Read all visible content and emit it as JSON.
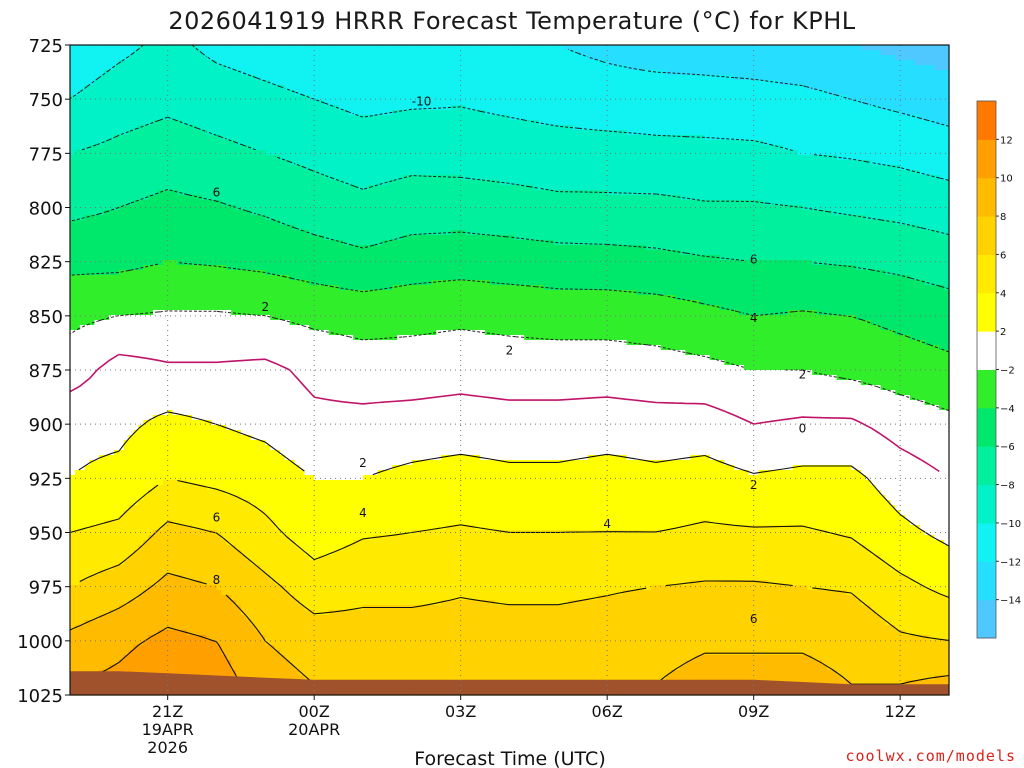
{
  "title": "2026041919 HRRR Forecast Temperature (°C) for KPHL",
  "credit": "coolwx.com/models",
  "colors": {
    "surface": "#a0522d",
    "zero_line": "#c0136a",
    "grid": "#777777"
  },
  "chart_data": {
    "type": "heatmap",
    "title": "2026041919 HRRR Forecast Temperature (°C) for KPHL",
    "xlabel": "Forecast Time (UTC)",
    "ylabel": "",
    "x_unit": "hours since 2026041919",
    "xlim": [
      0,
      18
    ],
    "ylim": [
      1025,
      725
    ],
    "y_axis": "pressure (hPa), decreasing upward",
    "grid": true,
    "x_ticks": [
      {
        "x": 2,
        "lines": [
          "21Z",
          "19APR",
          "2026"
        ]
      },
      {
        "x": 5,
        "lines": [
          "00Z",
          "20APR"
        ]
      },
      {
        "x": 8,
        "lines": [
          "03Z"
        ]
      },
      {
        "x": 11,
        "lines": [
          "06Z"
        ]
      },
      {
        "x": 14,
        "lines": [
          "09Z"
        ]
      },
      {
        "x": 17,
        "lines": [
          "12Z"
        ]
      }
    ],
    "y_ticks": [
      725,
      750,
      775,
      800,
      825,
      850,
      875,
      900,
      925,
      950,
      975,
      1000,
      1025
    ],
    "colorbar": {
      "levels": [
        -16,
        -14,
        -12,
        -10,
        -8,
        -6,
        -4,
        -2,
        2,
        4,
        6,
        8,
        10,
        12,
        14
      ],
      "colors": [
        "#4fc8ff",
        "#26deff",
        "#11f2f2",
        "#00f2c6",
        "#00f09e",
        "#00e86c",
        "#31ee2a",
        "#ffffff",
        "#ffff00",
        "#ffea00",
        "#ffd200",
        "#ffbb00",
        "#ff9f00",
        "#ff7800"
      ],
      "tick_labels": [
        -14,
        -12,
        -10,
        -8,
        -6,
        -4,
        -2,
        2,
        4,
        6,
        8,
        10,
        12
      ]
    },
    "columns_x": [
      0,
      1,
      2,
      3,
      4,
      5,
      6,
      7,
      8,
      9,
      10,
      11,
      12,
      13,
      14,
      15,
      16,
      17,
      18
    ],
    "temperature_profiles": {
      "pressure_levels": [
        1020,
        1000,
        975,
        950,
        925,
        900,
        875,
        850,
        825,
        800,
        775,
        750,
        725
      ],
      "values": [
        [
          10.0,
          8.5,
          6.0,
          4.0,
          2.0,
          1.5,
          -1.0,
          -2.5,
          -4.5,
          -6.5,
          -8.0,
          -10.0,
          -11.5
        ],
        [
          10.5,
          9.5,
          7.0,
          4.5,
          2.5,
          1.5,
          0.8,
          -2.0,
          -4.5,
          -6.0,
          -7.5,
          -9.0,
          -10.5
        ],
        [
          11.5,
          10.5,
          8.5,
          6.5,
          4.0,
          2.5,
          0.3,
          -1.8,
          -4.0,
          -5.5,
          -7.0,
          -8.5,
          -9.5
        ],
        [
          11.0,
          10.0,
          8.0,
          6.0,
          3.5,
          2.0,
          0.3,
          -1.8,
          -4.2,
          -5.8,
          -7.5,
          -9.0,
          -10.5
        ],
        [
          9.0,
          8.0,
          6.5,
          4.5,
          3.0,
          1.5,
          0.5,
          -2.0,
          -4.5,
          -6.3,
          -8.0,
          -9.5,
          -11.0
        ],
        [
          8.0,
          7.0,
          5.0,
          3.0,
          2.0,
          0.5,
          -0.5,
          -2.5,
          -5.0,
          -7.0,
          -8.5,
          -10.0,
          -11.5
        ],
        [
          7.5,
          6.8,
          5.5,
          3.8,
          2.0,
          0.6,
          -1.0,
          -2.8,
          -5.5,
          -7.5,
          -9.0,
          -10.5,
          -12.0
        ],
        [
          7.5,
          6.8,
          5.5,
          4.0,
          2.5,
          0.8,
          -1.0,
          -2.6,
          -5.0,
          -7.0,
          -8.7,
          -10.3,
          -11.8
        ],
        [
          7.5,
          6.8,
          5.8,
          4.2,
          2.8,
          1.0,
          -0.8,
          -2.4,
          -4.8,
          -7.0,
          -8.8,
          -10.2,
          -11.5
        ],
        [
          7.5,
          6.8,
          5.6,
          4.0,
          2.5,
          0.8,
          -1.0,
          -2.6,
          -5.0,
          -7.2,
          -9.0,
          -10.5,
          -11.8
        ],
        [
          7.5,
          6.8,
          5.6,
          4.0,
          2.5,
          0.8,
          -1.0,
          -2.8,
          -5.2,
          -7.5,
          -9.2,
          -10.8,
          -12.0
        ],
        [
          7.8,
          7.0,
          5.8,
          4.0,
          2.8,
          1.0,
          -1.0,
          -2.8,
          -5.3,
          -7.5,
          -9.3,
          -11.0,
          -12.5
        ],
        [
          8.0,
          7.5,
          6.0,
          4.0,
          2.5,
          0.8,
          -1.2,
          -3.0,
          -5.5,
          -7.5,
          -9.5,
          -11.0,
          -13.0
        ],
        [
          8.5,
          7.8,
          6.2,
          4.3,
          2.8,
          0.9,
          -1.5,
          -3.5,
          -5.8,
          -7.8,
          -9.5,
          -11.2,
          -13.0
        ],
        [
          8.5,
          7.8,
          6.2,
          4.2,
          2.2,
          0.0,
          -2.0,
          -4.0,
          -6.0,
          -7.8,
          -9.6,
          -11.3,
          -13.2
        ],
        [
          8.5,
          7.8,
          6.0,
          4.2,
          2.5,
          0.3,
          -2.0,
          -3.8,
          -6.0,
          -8.0,
          -10.0,
          -11.5,
          -13.5
        ],
        [
          8.0,
          7.5,
          5.8,
          3.8,
          2.5,
          0.3,
          -2.5,
          -4.0,
          -6.2,
          -8.3,
          -10.2,
          -12.0,
          -14.0
        ],
        [
          8.0,
          6.3,
          4.5,
          2.5,
          1.0,
          -0.8,
          -3.0,
          -4.5,
          -6.5,
          -8.6,
          -10.5,
          -12.5,
          -14.5
        ],
        [
          8.5,
          6.0,
          3.5,
          1.5,
          0.0,
          -1.5,
          -3.5,
          -5.0,
          -7.0,
          -9.0,
          -11.0,
          -13.0,
          -15.0
        ]
      ]
    },
    "surface_pressure_hpa": [
      1014,
      1014,
      1015,
      1016,
      1017,
      1018,
      1018,
      1018,
      1018,
      1018,
      1018,
      1018,
      1018,
      1018,
      1018,
      1019,
      1020,
      1020,
      1020
    ],
    "contour_labels": [
      {
        "text": "-10",
        "x": 7.2,
        "y": 751
      },
      {
        "text": "6",
        "x": 3.0,
        "y": 793
      },
      {
        "text": "6",
        "x": 14.0,
        "y": 824
      },
      {
        "text": "2",
        "x": 4.0,
        "y": 846
      },
      {
        "text": "4",
        "x": 14.0,
        "y": 851
      },
      {
        "text": "2",
        "x": 9.0,
        "y": 866
      },
      {
        "text": "2",
        "x": 15.0,
        "y": 877
      },
      {
        "text": "0",
        "x": 15.0,
        "y": 902
      },
      {
        "text": "2",
        "x": 6.0,
        "y": 918
      },
      {
        "text": "2",
        "x": 14.0,
        "y": 928
      },
      {
        "text": "4",
        "x": 6.0,
        "y": 941
      },
      {
        "text": "4",
        "x": 11.0,
        "y": 946
      },
      {
        "text": "6",
        "x": 3.0,
        "y": 943
      },
      {
        "text": "8",
        "x": 3.0,
        "y": 972
      },
      {
        "text": "6",
        "x": 14.0,
        "y": 990
      }
    ]
  }
}
